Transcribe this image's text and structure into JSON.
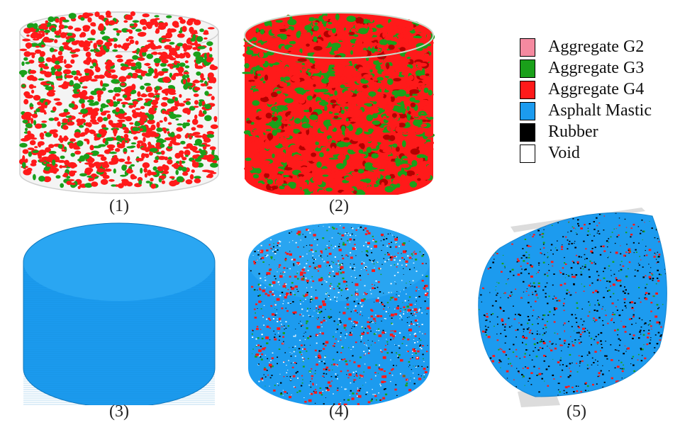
{
  "legend": {
    "items": [
      {
        "label": "Aggregate G2",
        "color": "#f58aa0"
      },
      {
        "label": "Aggregate G3",
        "color": "#1aa01a"
      },
      {
        "label": "Aggregate G4",
        "color": "#ff1a1a"
      },
      {
        "label": "Asphalt Mastic",
        "color": "#1c9bef"
      },
      {
        "label": "Rubber",
        "color": "#000000"
      },
      {
        "label": "Void",
        "color": "#ffffff"
      }
    ]
  },
  "panels": [
    {
      "caption": "(1)",
      "content": "aggregates-sparse"
    },
    {
      "caption": "(2)",
      "content": "aggregates-dense"
    },
    {
      "caption": "(3)",
      "content": "asphalt-mastic"
    },
    {
      "caption": "(4)",
      "content": "composite"
    },
    {
      "caption": "(5)",
      "content": "composite-rotated"
    }
  ],
  "colors": {
    "mastic": "#1c9bef",
    "g3": "#1aa01a",
    "g4": "#ff1a1a",
    "rubber": "#000000",
    "void": "#ffffff",
    "shell": "#cfcfcf"
  }
}
